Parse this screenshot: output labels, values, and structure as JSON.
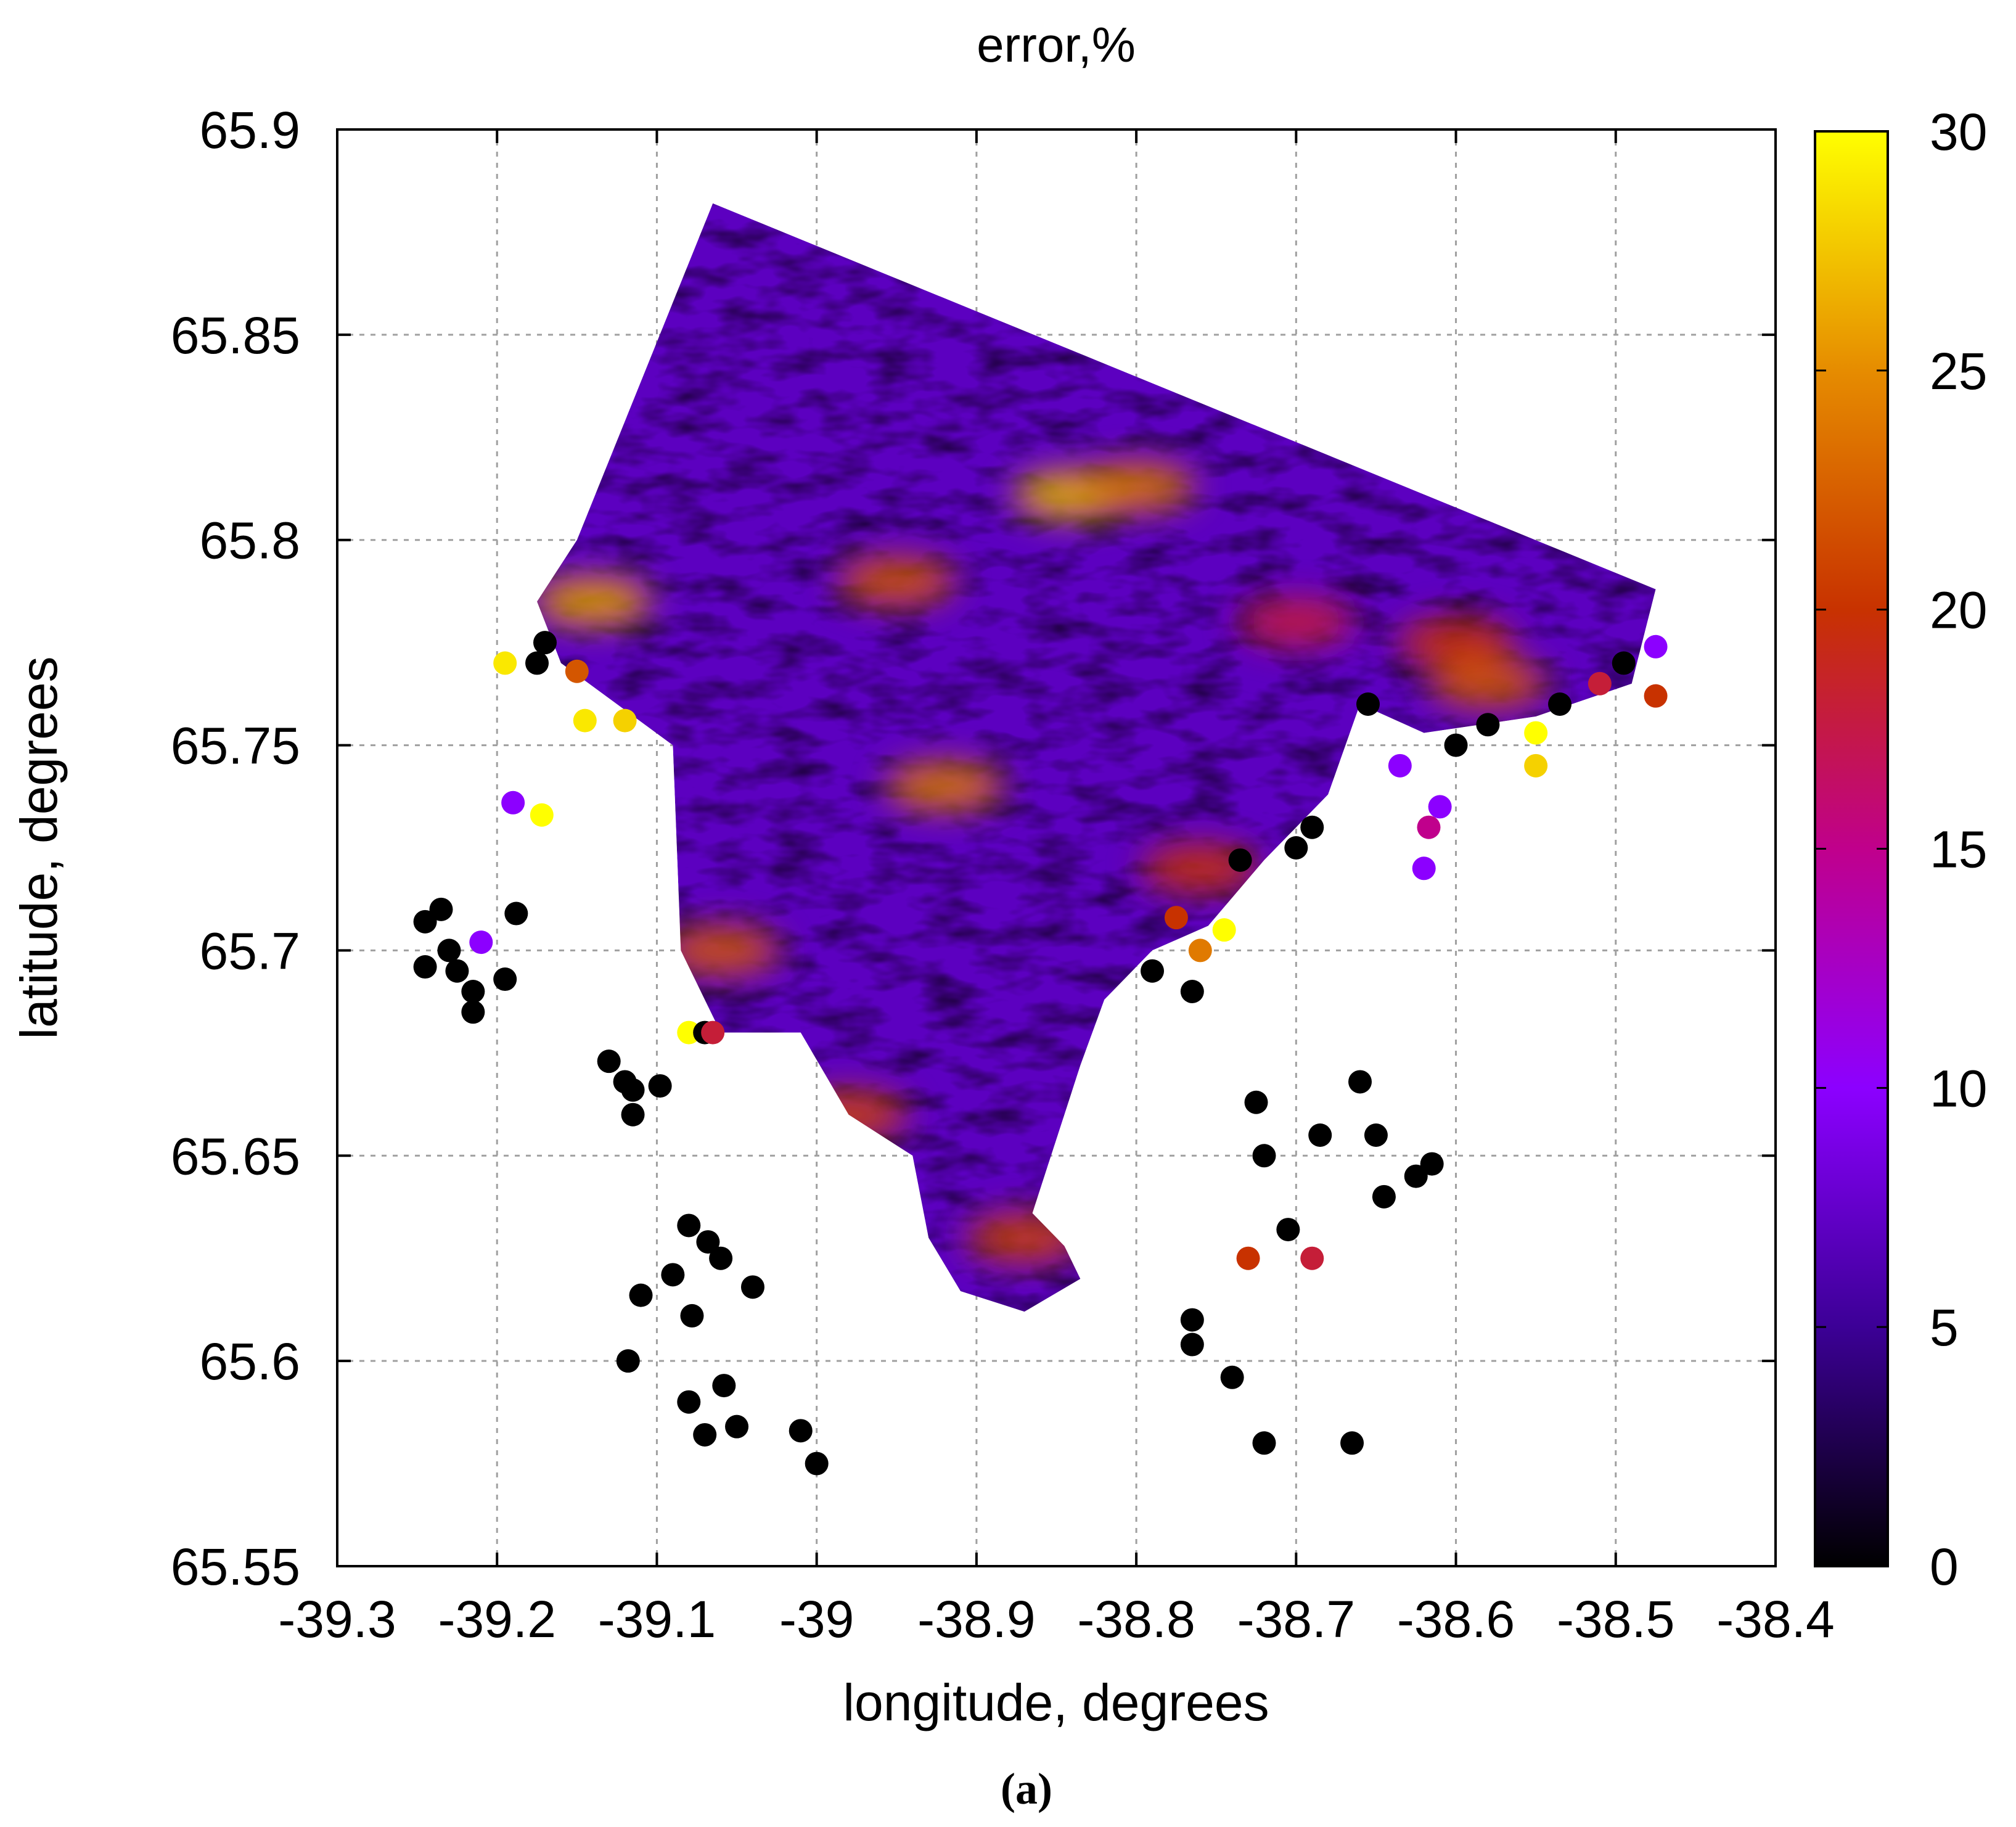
{
  "chart_data": {
    "type": "heatmap",
    "title": "error,%",
    "xlabel": "longitude, degrees",
    "ylabel": "latitude, degrees",
    "panel_label": "(a)",
    "xlim": [
      -39.3,
      -38.4
    ],
    "ylim": [
      65.55,
      65.9
    ],
    "x_ticks": [
      -39.3,
      -39.2,
      -39.1,
      -39.0,
      -38.9,
      -38.8,
      -38.7,
      -38.6,
      -38.5,
      -38.4
    ],
    "x_tick_labels": [
      "-39.3",
      "-39.2",
      "-39.1",
      "-39",
      "-38.9",
      "-38.8",
      "-38.7",
      "-38.6",
      "-38.5",
      "-38.4"
    ],
    "y_ticks": [
      65.55,
      65.6,
      65.65,
      65.7,
      65.75,
      65.8,
      65.85,
      65.9
    ],
    "y_tick_labels": [
      "65.55",
      "65.6",
      "65.65",
      "65.7",
      "65.75",
      "65.8",
      "65.85",
      "65.9"
    ],
    "grid": true,
    "colorbar": {
      "range": [
        0,
        30
      ],
      "ticks": [
        0,
        5,
        10,
        15,
        20,
        25,
        30
      ],
      "tick_labels": [
        "0",
        "5",
        "10",
        "15",
        "20",
        "25",
        "30"
      ],
      "colors": [
        "#000000",
        "#3c0096",
        "#8c00ff",
        "#c0008c",
        "#c83200",
        "#e68c00",
        "#ffff00"
      ]
    },
    "field_outline": [
      [
        -39.065,
        65.882
      ],
      [
        -38.475,
        65.788
      ],
      [
        -38.49,
        65.765
      ],
      [
        -38.55,
        65.757
      ],
      [
        -38.62,
        65.753
      ],
      [
        -38.66,
        65.76
      ],
      [
        -38.68,
        65.738
      ],
      [
        -38.72,
        65.722
      ],
      [
        -38.755,
        65.706
      ],
      [
        -38.79,
        65.7
      ],
      [
        -38.82,
        65.688
      ],
      [
        -38.835,
        65.672
      ],
      [
        -38.845,
        65.66
      ],
      [
        -38.855,
        65.648
      ],
      [
        -38.865,
        65.636
      ],
      [
        -38.845,
        65.628
      ],
      [
        -38.835,
        65.62
      ],
      [
        -38.87,
        65.612
      ],
      [
        -38.91,
        65.617
      ],
      [
        -38.93,
        65.63
      ],
      [
        -38.94,
        65.65
      ],
      [
        -38.98,
        65.66
      ],
      [
        -39.01,
        65.68
      ],
      [
        -39.06,
        65.68
      ],
      [
        -39.085,
        65.7
      ],
      [
        -39.09,
        65.75
      ],
      [
        -39.16,
        65.77
      ],
      [
        -39.175,
        65.785
      ],
      [
        -39.15,
        65.8
      ]
    ],
    "hotspots": [
      {
        "lon": -38.84,
        "lat": 65.811,
        "value": 27
      },
      {
        "lon": -38.8,
        "lat": 65.813,
        "value": 24
      },
      {
        "lon": -38.92,
        "lat": 65.74,
        "value": 24
      },
      {
        "lon": -39.14,
        "lat": 65.785,
        "value": 26
      },
      {
        "lon": -38.6,
        "lat": 65.775,
        "value": 20
      },
      {
        "lon": -38.58,
        "lat": 65.765,
        "value": 22
      },
      {
        "lon": -39.06,
        "lat": 65.7,
        "value": 22
      },
      {
        "lon": -38.98,
        "lat": 65.66,
        "value": 21
      },
      {
        "lon": -38.76,
        "lat": 65.72,
        "value": 20
      },
      {
        "lon": -38.87,
        "lat": 65.63,
        "value": 21
      },
      {
        "lon": -38.95,
        "lat": 65.79,
        "value": 22
      },
      {
        "lon": -38.7,
        "lat": 65.78,
        "value": 18
      }
    ],
    "scatter_points": [
      {
        "lon": -39.245,
        "lat": 65.707,
        "value": 0
      },
      {
        "lon": -39.235,
        "lat": 65.71,
        "value": 0
      },
      {
        "lon": -39.23,
        "lat": 65.7,
        "value": 0
      },
      {
        "lon": -39.245,
        "lat": 65.696,
        "value": 0
      },
      {
        "lon": -39.225,
        "lat": 65.695,
        "value": 0
      },
      {
        "lon": -39.21,
        "lat": 65.702,
        "value": 10
      },
      {
        "lon": -39.215,
        "lat": 65.69,
        "value": 0
      },
      {
        "lon": -39.215,
        "lat": 65.685,
        "value": 0
      },
      {
        "lon": -39.195,
        "lat": 65.693,
        "value": 0
      },
      {
        "lon": -39.188,
        "lat": 65.709,
        "value": 0
      },
      {
        "lon": -39.19,
        "lat": 65.736,
        "value": 10
      },
      {
        "lon": -39.172,
        "lat": 65.733,
        "value": 30
      },
      {
        "lon": -39.145,
        "lat": 65.756,
        "value": 29
      },
      {
        "lon": -39.12,
        "lat": 65.756,
        "value": 28
      },
      {
        "lon": -39.13,
        "lat": 65.673,
        "value": 0
      },
      {
        "lon": -39.12,
        "lat": 65.668,
        "value": 0
      },
      {
        "lon": -39.115,
        "lat": 65.666,
        "value": 0
      },
      {
        "lon": -39.115,
        "lat": 65.66,
        "value": 0
      },
      {
        "lon": -39.098,
        "lat": 65.667,
        "value": 0
      },
      {
        "lon": -39.08,
        "lat": 65.633,
        "value": 0
      },
      {
        "lon": -39.068,
        "lat": 65.629,
        "value": 0
      },
      {
        "lon": -39.06,
        "lat": 65.625,
        "value": 0
      },
      {
        "lon": -39.09,
        "lat": 65.621,
        "value": 0
      },
      {
        "lon": -39.11,
        "lat": 65.616,
        "value": 0
      },
      {
        "lon": -39.078,
        "lat": 65.611,
        "value": 0
      },
      {
        "lon": -39.04,
        "lat": 65.618,
        "value": 0
      },
      {
        "lon": -39.118,
        "lat": 65.6,
        "value": 0
      },
      {
        "lon": -39.08,
        "lat": 65.59,
        "value": 0
      },
      {
        "lon": -39.058,
        "lat": 65.594,
        "value": 0
      },
      {
        "lon": -39.07,
        "lat": 65.582,
        "value": 0
      },
      {
        "lon": -39.05,
        "lat": 65.584,
        "value": 0
      },
      {
        "lon": -39.01,
        "lat": 65.583,
        "value": 0
      },
      {
        "lon": -39.0,
        "lat": 65.575,
        "value": 0
      },
      {
        "lon": -38.765,
        "lat": 65.61,
        "value": 0
      },
      {
        "lon": -38.765,
        "lat": 65.604,
        "value": 0
      },
      {
        "lon": -38.74,
        "lat": 65.596,
        "value": 0
      },
      {
        "lon": -38.72,
        "lat": 65.58,
        "value": 0
      },
      {
        "lon": -38.665,
        "lat": 65.58,
        "value": 0
      },
      {
        "lon": -38.725,
        "lat": 65.663,
        "value": 0
      },
      {
        "lon": -38.685,
        "lat": 65.655,
        "value": 0
      },
      {
        "lon": -38.66,
        "lat": 65.668,
        "value": 0
      },
      {
        "lon": -38.65,
        "lat": 65.655,
        "value": 0
      },
      {
        "lon": -38.645,
        "lat": 65.64,
        "value": 0
      },
      {
        "lon": -38.625,
        "lat": 65.645,
        "value": 0
      },
      {
        "lon": -38.615,
        "lat": 65.648,
        "value": 0
      },
      {
        "lon": -38.73,
        "lat": 65.625,
        "value": 20
      },
      {
        "lon": -38.69,
        "lat": 65.625,
        "value": 18
      },
      {
        "lon": -38.72,
        "lat": 65.65,
        "value": 0
      },
      {
        "lon": -38.705,
        "lat": 65.632,
        "value": 0
      },
      {
        "lon": -38.61,
        "lat": 65.735,
        "value": 10
      },
      {
        "lon": -38.617,
        "lat": 65.73,
        "value": 15
      },
      {
        "lon": -38.62,
        "lat": 65.72,
        "value": 10
      },
      {
        "lon": -38.635,
        "lat": 65.745,
        "value": 10
      },
      {
        "lon": -38.51,
        "lat": 65.765,
        "value": 18
      },
      {
        "lon": -38.475,
        "lat": 65.762,
        "value": 20
      },
      {
        "lon": -38.475,
        "lat": 65.774,
        "value": 10
      },
      {
        "lon": -38.495,
        "lat": 65.77,
        "value": 0
      },
      {
        "lon": -38.55,
        "lat": 65.753,
        "value": 30
      },
      {
        "lon": -38.55,
        "lat": 65.745,
        "value": 28
      },
      {
        "lon": -38.535,
        "lat": 65.76,
        "value": 0
      },
      {
        "lon": -38.58,
        "lat": 65.755,
        "value": 0
      },
      {
        "lon": -38.6,
        "lat": 65.75,
        "value": 0
      },
      {
        "lon": -38.655,
        "lat": 65.76,
        "value": 0
      },
      {
        "lon": -38.69,
        "lat": 65.73,
        "value": 0
      },
      {
        "lon": -38.7,
        "lat": 65.725,
        "value": 0
      },
      {
        "lon": -38.735,
        "lat": 65.722,
        "value": 0
      },
      {
        "lon": -38.745,
        "lat": 65.705,
        "value": 30
      },
      {
        "lon": -38.76,
        "lat": 65.7,
        "value": 24
      },
      {
        "lon": -38.775,
        "lat": 65.708,
        "value": 20
      },
      {
        "lon": -38.79,
        "lat": 65.695,
        "value": 0
      },
      {
        "lon": -38.765,
        "lat": 65.69,
        "value": 0
      },
      {
        "lon": -39.175,
        "lat": 65.77,
        "value": 0
      },
      {
        "lon": -39.195,
        "lat": 65.77,
        "value": 29
      },
      {
        "lon": -39.17,
        "lat": 65.775,
        "value": 0
      },
      {
        "lon": -39.15,
        "lat": 65.768,
        "value": 22
      },
      {
        "lon": -39.08,
        "lat": 65.68,
        "value": 30
      },
      {
        "lon": -39.07,
        "lat": 65.68,
        "value": 0
      },
      {
        "lon": -39.065,
        "lat": 65.68,
        "value": 18
      }
    ]
  }
}
